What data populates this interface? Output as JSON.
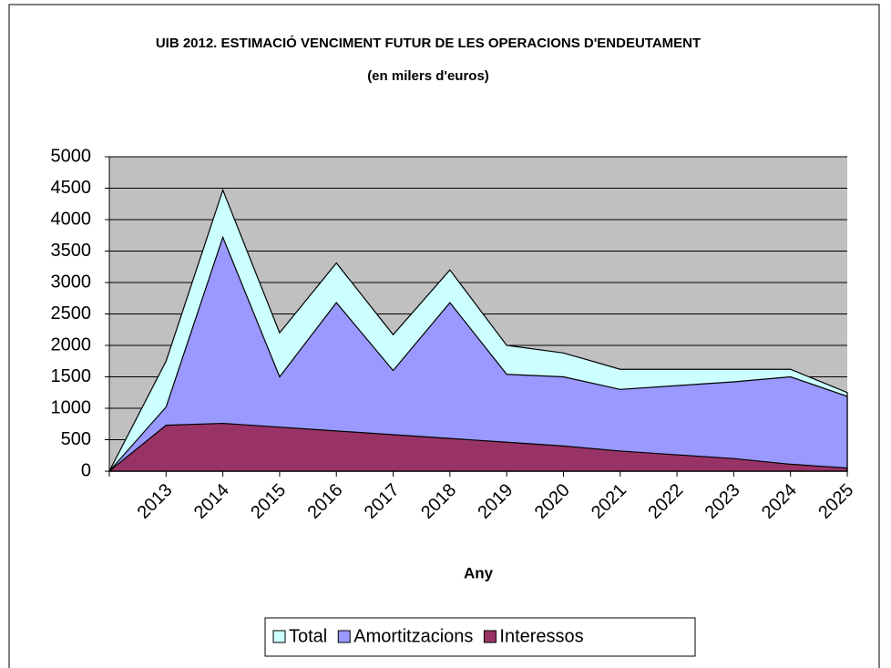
{
  "chart_data": {
    "type": "area",
    "title": "UIB 2012. ESTIMACIÓ VENCIMENT FUTUR DE LES OPERACIONS D'ENDEUTAMENT",
    "subtitle": "(en milers d'euros)",
    "x_label": "Any",
    "categories": [
      null,
      "2013",
      "2014",
      "2015",
      "2016",
      "2017",
      "2018",
      "2019",
      "2020",
      "2021",
      "2022",
      "2023",
      "2024",
      "2025"
    ],
    "series": [
      {
        "name": "Total",
        "color": "#ccffff",
        "values": [
          0,
          1750,
          4470,
          2200,
          3310,
          2170,
          3200,
          2000,
          1880,
          1620,
          1620,
          1620,
          1620,
          1250
        ]
      },
      {
        "name": "Amortitzacions",
        "color": "#9999ff",
        "values": [
          0,
          1020,
          3720,
          1500,
          2680,
          1600,
          2680,
          1540,
          1500,
          1300,
          1360,
          1420,
          1500,
          1190
        ]
      },
      {
        "name": "Interessos",
        "color": "#993366",
        "values": [
          0,
          730,
          760,
          700,
          640,
          580,
          520,
          460,
          400,
          320,
          260,
          200,
          110,
          50
        ]
      }
    ],
    "ylim": [
      0,
      5000
    ],
    "yticks": [
      0,
      500,
      1000,
      1500,
      2000,
      2500,
      3000,
      3500,
      4000,
      4500,
      5000
    ],
    "grid": true,
    "legend": "bottom"
  }
}
